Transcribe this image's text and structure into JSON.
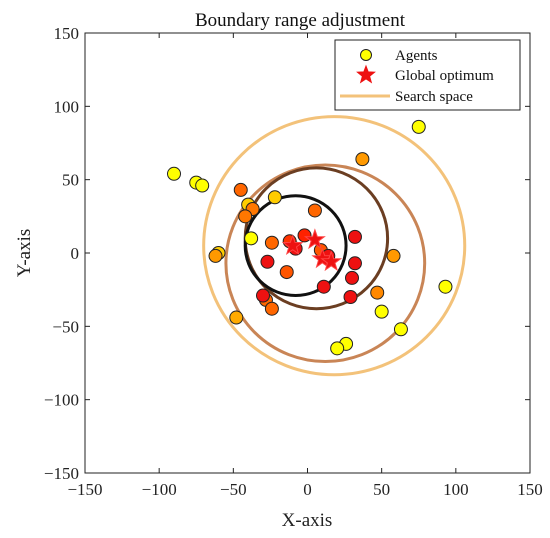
{
  "chart_data": {
    "type": "scatter",
    "title": "Boundary range adjustment",
    "xlabel": "X-axis",
    "ylabel": "Y-axis",
    "xlim": [
      -150,
      150
    ],
    "ylim": [
      -150,
      150
    ],
    "xticks": [
      -150,
      -100,
      -50,
      0,
      50,
      100,
      150
    ],
    "yticks": [
      -150,
      -100,
      -50,
      0,
      50,
      100,
      150
    ],
    "grid": false,
    "legend_position": "top-right",
    "legend": [
      {
        "label": "Agents",
        "marker": "circle",
        "color": "#ffff00"
      },
      {
        "label": "Global optimum",
        "marker": "star",
        "color": "#ee1111"
      },
      {
        "label": "Search space",
        "marker": "line",
        "color": "#f3c27a"
      }
    ],
    "search_spaces": [
      {
        "cx": 18,
        "cy": 5,
        "r": 88,
        "color": "#f3c27a"
      },
      {
        "cx": 12,
        "cy": -7,
        "r": 67,
        "color": "#c98556"
      },
      {
        "cx": 6,
        "cy": 10,
        "r": 48,
        "color": "#6b3e22"
      },
      {
        "cx": -8,
        "cy": 5,
        "r": 34,
        "color": "#111111"
      }
    ],
    "agents": [
      {
        "x": -90,
        "y": 54,
        "color": "#ffff00"
      },
      {
        "x": -75,
        "y": 48,
        "color": "#ffff00"
      },
      {
        "x": -71,
        "y": 46,
        "color": "#ffff00"
      },
      {
        "x": 75,
        "y": 86,
        "color": "#ffff00"
      },
      {
        "x": 93,
        "y": -23,
        "color": "#ffff00"
      },
      {
        "x": 63,
        "y": -52,
        "color": "#ffff00"
      },
      {
        "x": 50,
        "y": -40,
        "color": "#ffff00"
      },
      {
        "x": 26,
        "y": -62,
        "color": "#ffff00"
      },
      {
        "x": 20,
        "y": -65,
        "color": "#ffff00"
      },
      {
        "x": -38,
        "y": 10,
        "color": "#ffff00"
      },
      {
        "x": -22,
        "y": 38,
        "color": "#ffcc00"
      },
      {
        "x": -40,
        "y": 33,
        "color": "#ffcc00"
      },
      {
        "x": -60,
        "y": 0,
        "color": "#ffcc00"
      },
      {
        "x": -48,
        "y": -44,
        "color": "#ffaa00"
      },
      {
        "x": -62,
        "y": -2,
        "color": "#ff9900"
      },
      {
        "x": 37,
        "y": 64,
        "color": "#ff9900"
      },
      {
        "x": 58,
        "y": -2,
        "color": "#ff9900"
      },
      {
        "x": 47,
        "y": -27,
        "color": "#ff8800"
      },
      {
        "x": -37,
        "y": 30,
        "color": "#ff7700"
      },
      {
        "x": -42,
        "y": 25,
        "color": "#ff7700"
      },
      {
        "x": -45,
        "y": 43,
        "color": "#ff6600"
      },
      {
        "x": 5,
        "y": 29,
        "color": "#ff6600"
      },
      {
        "x": -24,
        "y": 7,
        "color": "#ff6600"
      },
      {
        "x": -28,
        "y": -32,
        "color": "#ff6600"
      },
      {
        "x": -24,
        "y": -38,
        "color": "#ff6600"
      },
      {
        "x": 9,
        "y": 2,
        "color": "#ff5500"
      },
      {
        "x": -14,
        "y": -13,
        "color": "#ff5500"
      },
      {
        "x": -12,
        "y": 8,
        "color": "#ff3300"
      },
      {
        "x": -2,
        "y": 12,
        "color": "#ff2200"
      },
      {
        "x": 32,
        "y": 11,
        "color": "#ee1111"
      },
      {
        "x": 32,
        "y": -7,
        "color": "#ee1111"
      },
      {
        "x": 30,
        "y": -17,
        "color": "#ee1111"
      },
      {
        "x": 29,
        "y": -30,
        "color": "#ee1111"
      },
      {
        "x": 11,
        "y": -23,
        "color": "#ee1111"
      },
      {
        "x": -27,
        "y": -6,
        "color": "#ee1111"
      },
      {
        "x": -30,
        "y": -29,
        "color": "#ee1111"
      },
      {
        "x": -8,
        "y": 3,
        "color": "#ee1111"
      },
      {
        "x": 14,
        "y": -2,
        "color": "#ee1111"
      }
    ],
    "optima": [
      {
        "x": -10,
        "y": 5
      },
      {
        "x": 5,
        "y": 9
      },
      {
        "x": 10,
        "y": -4
      },
      {
        "x": 16,
        "y": -6
      }
    ]
  }
}
